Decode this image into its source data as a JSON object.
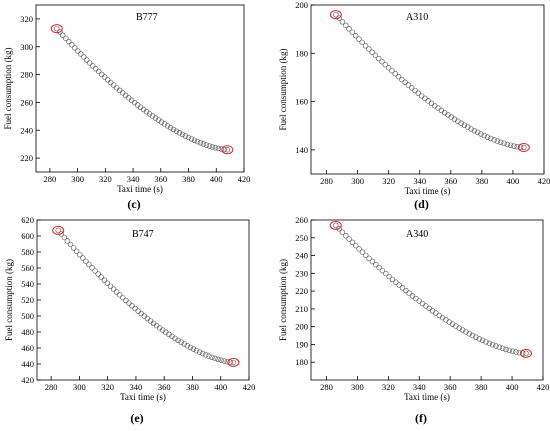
{
  "chart_data": [
    {
      "type": "scatter",
      "title": "B777",
      "panel_label": "(c)",
      "xlabel": "Taxi time (s)",
      "ylabel": "Fuel consumption (kg)",
      "xlim": [
        270,
        420
      ],
      "ylim": [
        210,
        330
      ],
      "xticks": [
        280,
        300,
        320,
        340,
        360,
        380,
        400,
        420
      ],
      "yticks": [
        220,
        240,
        260,
        280,
        300,
        320
      ],
      "curve": {
        "x_start": 285,
        "x_end": 408,
        "y_start": 313,
        "y_end": 226
      },
      "highlighted_points": [
        [
          285,
          313
        ],
        [
          408,
          226
        ]
      ],
      "grid": false,
      "marker": "open-circle"
    },
    {
      "type": "scatter",
      "title": "A310",
      "panel_label": "(d)",
      "xlabel": "Taxi time (s)",
      "ylabel": "Fuel consumption (kg)",
      "xlim": [
        270,
        420
      ],
      "ylim": [
        130,
        200
      ],
      "xticks": [
        280,
        300,
        320,
        340,
        360,
        380,
        400,
        420
      ],
      "yticks": [
        140,
        160,
        180,
        200
      ],
      "curve": {
        "x_start": 286,
        "x_end": 407,
        "y_start": 196,
        "y_end": 141
      },
      "highlighted_points": [
        [
          286,
          196
        ],
        [
          407,
          141
        ]
      ],
      "grid": false,
      "marker": "open-circle"
    },
    {
      "type": "scatter",
      "title": "B747",
      "panel_label": "(e)",
      "xlabel": "Taxi time (s)",
      "ylabel": "Fuel consumption (kg)",
      "xlim": [
        270,
        420
      ],
      "ylim": [
        420,
        620
      ],
      "xticks": [
        280,
        300,
        320,
        340,
        360,
        380,
        400,
        420
      ],
      "yticks": [
        420,
        440,
        460,
        480,
        500,
        520,
        540,
        560,
        580,
        600,
        620
      ],
      "curve": {
        "x_start": 285,
        "x_end": 409,
        "y_start": 607,
        "y_end": 442
      },
      "highlighted_points": [
        [
          285,
          607
        ],
        [
          409,
          442
        ]
      ],
      "grid": false,
      "marker": "open-circle"
    },
    {
      "type": "scatter",
      "title": "A340",
      "panel_label": "(f)",
      "xlabel": "Taxi time (s)",
      "ylabel": "Fuel consumption (kg)",
      "xlim": [
        270,
        420
      ],
      "ylim": [
        170,
        260
      ],
      "xticks": [
        280,
        300,
        320,
        340,
        360,
        380,
        400,
        420
      ],
      "yticks": [
        180,
        190,
        200,
        210,
        220,
        230,
        240,
        250,
        260
      ],
      "curve": {
        "x_start": 286,
        "x_end": 409,
        "y_start": 257,
        "y_end": 185
      },
      "highlighted_points": [
        [
          286,
          257
        ],
        [
          409,
          185
        ]
      ],
      "grid": false,
      "marker": "open-circle"
    }
  ],
  "colors": {
    "marker": "#555555",
    "highlight": "#e02020",
    "axis": "#000000"
  }
}
